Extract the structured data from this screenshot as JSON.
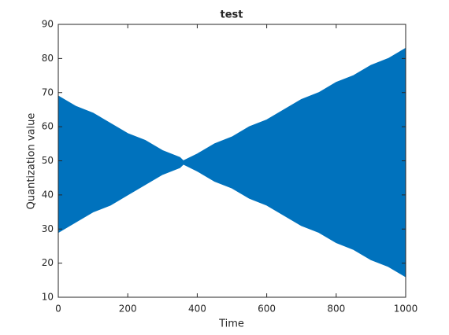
{
  "chart_data": {
    "type": "band",
    "title": "test",
    "xlabel": "Time",
    "ylabel": "Quantization value",
    "x": [
      0,
      50,
      100,
      150,
      200,
      250,
      300,
      350,
      360,
      400,
      450,
      500,
      550,
      600,
      650,
      700,
      750,
      800,
      850,
      900,
      950,
      1000
    ],
    "upper": [
      69,
      66,
      64,
      61,
      58,
      56,
      53,
      51,
      50,
      52,
      55,
      57,
      60,
      62,
      65,
      68,
      70,
      73,
      75,
      78,
      80,
      83
    ],
    "lower": [
      29,
      32,
      35,
      37,
      40,
      43,
      46,
      48,
      49,
      47,
      44,
      42,
      39,
      37,
      34,
      31,
      29,
      26,
      24,
      21,
      19,
      16
    ],
    "color": "#0072bd",
    "xlim": [
      0,
      1000
    ],
    "xticks": [
      0,
      200,
      400,
      600,
      800,
      1000
    ],
    "ylim": [
      10,
      90
    ],
    "yticks": [
      10,
      20,
      30,
      40,
      50,
      60,
      70,
      80,
      90
    ]
  }
}
